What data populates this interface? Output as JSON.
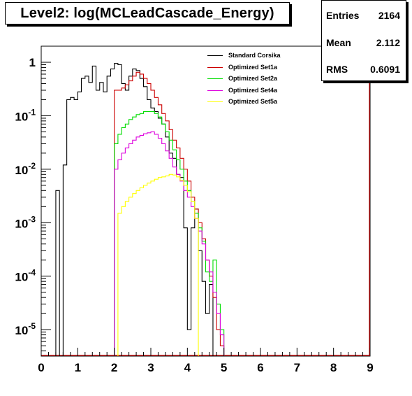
{
  "chart_data": {
    "type": "histogram",
    "title": "Level2:  log(MCLeadCascade_Energy)",
    "xlim": [
      0,
      9
    ],
    "ylim": [
      3.2e-06,
      2.0
    ],
    "log_y": true,
    "grid": false,
    "legend_position": "top-right",
    "x_ticks": [
      "0",
      "1",
      "2",
      "3",
      "4",
      "5",
      "6",
      "7",
      "8",
      "9"
    ],
    "y_ticks": [
      {
        "value": 1,
        "base": "1",
        "exp": ""
      },
      {
        "value": 0.1,
        "base": "10",
        "exp": "-1"
      },
      {
        "value": 0.01,
        "base": "10",
        "exp": "-2"
      },
      {
        "value": 0.001,
        "base": "10",
        "exp": "-3"
      },
      {
        "value": 0.0001,
        "base": "10",
        "exp": "-4"
      },
      {
        "value": 1e-05,
        "base": "10",
        "exp": "-5"
      }
    ],
    "stats": [
      {
        "label": "Entries",
        "value": "2164"
      },
      {
        "label": "Mean",
        "value": "2.112"
      },
      {
        "label": "RMS",
        "value": "0.6091"
      }
    ],
    "series": [
      {
        "name": "Standard Corsika",
        "color": "#000000",
        "x": [
          0.4,
          0.5,
          0.6,
          0.7,
          0.8,
          0.9,
          1.0,
          1.1,
          1.2,
          1.3,
          1.4,
          1.5,
          1.6,
          1.7,
          1.8,
          1.9,
          2.0,
          2.1,
          2.2,
          2.3,
          2.4,
          2.5,
          2.6,
          2.7,
          2.8,
          2.9,
          3.0,
          3.1,
          3.2,
          3.3,
          3.4,
          3.5,
          3.6,
          3.7,
          3.8,
          3.9,
          4.0,
          4.1,
          4.2,
          4.3,
          4.4,
          4.5,
          4.6
        ],
        "y": [
          0.004,
          0,
          0.012,
          0.2,
          0.22,
          0.2,
          0.28,
          0.5,
          0.55,
          0.42,
          0.85,
          0.3,
          0.42,
          0.28,
          0.55,
          0.75,
          0.95,
          0.9,
          0.4,
          0.3,
          0.55,
          0.75,
          0.7,
          0.5,
          0.35,
          0.2,
          0.14,
          0.12,
          0.09,
          0.07,
          0.04,
          0.02,
          0.016,
          0.008,
          0.007,
          0.0008,
          1e-05,
          0.0008,
          0.0018,
          0.0003,
          8e-05,
          2e-05,
          7e-05
        ]
      },
      {
        "name": "Optimized Set1a",
        "color": "#cc0000",
        "x": [
          2.0,
          2.1,
          2.2,
          2.3,
          2.4,
          2.5,
          2.6,
          2.7,
          2.8,
          2.9,
          3.0,
          3.1,
          3.2,
          3.3,
          3.4,
          3.5,
          3.6,
          3.7,
          3.8,
          3.9,
          4.0,
          4.1,
          4.2,
          4.3,
          4.4,
          4.5,
          4.6,
          4.7,
          4.8,
          4.9
        ],
        "y": [
          0.3,
          0.3,
          0.33,
          0.38,
          0.45,
          0.55,
          0.65,
          0.6,
          0.5,
          0.4,
          0.3,
          0.22,
          0.16,
          0.11,
          0.08,
          0.055,
          0.035,
          0.025,
          0.016,
          0.01,
          0.006,
          0.003,
          0.0018,
          0.001,
          0.0005,
          0.0002,
          0.0001,
          4e-05,
          1e-05,
          5e-06
        ]
      },
      {
        "name": "Optimized Set2a",
        "color": "#00dd00",
        "x": [
          2.0,
          2.1,
          2.2,
          2.3,
          2.4,
          2.5,
          2.6,
          2.7,
          2.8,
          2.9,
          3.0,
          3.1,
          3.2,
          3.3,
          3.4,
          3.5,
          3.6,
          3.7,
          3.8,
          3.9,
          4.0,
          4.1,
          4.2,
          4.3,
          4.4,
          4.5,
          4.6,
          4.7,
          4.8,
          4.9
        ],
        "y": [
          0.03,
          0.045,
          0.06,
          0.07,
          0.085,
          0.095,
          0.105,
          0.11,
          0.12,
          0.12,
          0.12,
          0.11,
          0.095,
          0.07,
          0.05,
          0.035,
          0.023,
          0.015,
          0.01,
          0.006,
          0.004,
          0.0025,
          0.0015,
          0.0008,
          0.00045,
          0.00012,
          8e-05,
          0.0002,
          3e-05,
          1e-05
        ]
      },
      {
        "name": "Optimized Set4a",
        "color": "#dd00dd",
        "x": [
          2.0,
          2.1,
          2.2,
          2.3,
          2.4,
          2.5,
          2.6,
          2.7,
          2.8,
          2.9,
          3.0,
          3.1,
          3.2,
          3.3,
          3.4,
          3.5,
          3.6,
          3.7,
          3.8,
          3.9,
          4.0,
          4.1,
          4.2,
          4.3,
          4.4,
          4.5,
          4.6,
          4.7,
          4.8,
          4.9
        ],
        "y": [
          0.01,
          0.015,
          0.02,
          0.025,
          0.03,
          0.035,
          0.04,
          0.043,
          0.046,
          0.048,
          0.05,
          0.045,
          0.038,
          0.03,
          0.022,
          0.016,
          0.011,
          0.008,
          0.006,
          0.004,
          0.003,
          0.002,
          0.0012,
          0.0007,
          0.0004,
          0.0002,
          0.00012,
          5e-05,
          2e-05,
          8e-06
        ]
      },
      {
        "name": "Optimized Set5a",
        "color": "#ffff00",
        "x": [
          2.1,
          2.2,
          2.3,
          2.4,
          2.5,
          2.6,
          2.7,
          2.8,
          2.9,
          3.0,
          3.1,
          3.2,
          3.3,
          3.4,
          3.5,
          3.6,
          3.7,
          3.8,
          3.9,
          4.0,
          4.1,
          4.2
        ],
        "y": [
          0.0015,
          0.002,
          0.0025,
          0.003,
          0.0035,
          0.004,
          0.0045,
          0.005,
          0.0055,
          0.006,
          0.0065,
          0.007,
          0.0072,
          0.0075,
          0.008,
          0.0078,
          0.0072,
          0.0062,
          0.005,
          0.0038,
          0.0025,
          0.0012
        ]
      }
    ]
  }
}
